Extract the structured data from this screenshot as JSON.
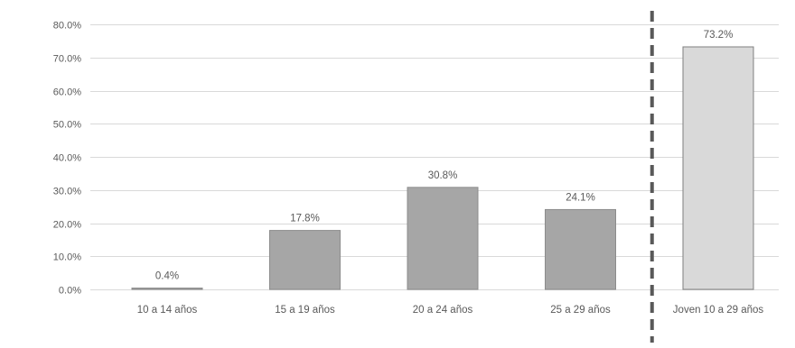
{
  "chart_data": {
    "type": "bar",
    "categories": [
      "10 a 14 años",
      "15 a 19 años",
      "20 a 24 años",
      "25 a 29 años",
      "Joven 10 a 29 años"
    ],
    "values": [
      0.4,
      17.8,
      30.8,
      24.1,
      73.2
    ],
    "data_labels": [
      "0.4%",
      "17.8%",
      "30.8%",
      "24.1%",
      "73.2%"
    ],
    "ylim": [
      0,
      80
    ],
    "yticks": [
      0,
      10,
      20,
      30,
      40,
      50,
      60,
      70,
      80
    ],
    "ytick_labels": [
      "0.0%",
      "10.0%",
      "20.0%",
      "30.0%",
      "40.0%",
      "50.0%",
      "60.0%",
      "70.0%",
      "80.0%"
    ],
    "grid": true,
    "separator_after_category": 3,
    "colors": {
      "bar": "#a6a6a6",
      "bar_border": "#8c8c8c",
      "highlight_bar": "#d9d9d9",
      "highlight_border": "#7f7f7f",
      "grid": "#d9d9d9",
      "separator": "#595959",
      "text": "#595959"
    }
  }
}
